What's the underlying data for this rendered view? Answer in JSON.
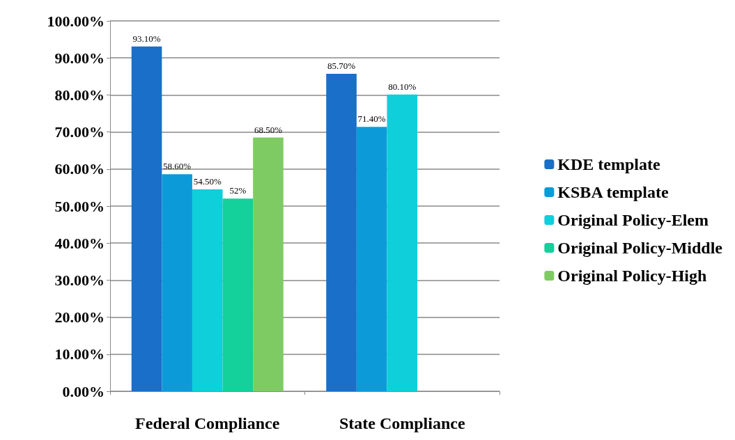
{
  "chart_data": {
    "type": "bar",
    "categories": [
      "Federal Compliance",
      "State Compliance"
    ],
    "series": [
      {
        "name": "KDE template",
        "color": "#1a6fc8",
        "values": [
          93.1,
          85.7
        ],
        "value_labels": [
          "93.10%",
          "85.70%"
        ]
      },
      {
        "name": "KSBA template",
        "color": "#0c9bd8",
        "values": [
          58.6,
          71.4
        ],
        "value_labels": [
          "58.60%",
          "71.40%"
        ]
      },
      {
        "name": "Original Policy-Elem",
        "color": "#0fcfdb",
        "values": [
          54.5,
          80.1
        ],
        "value_labels": [
          "54.50%",
          "80.10%"
        ]
      },
      {
        "name": "Original Policy-Middle",
        "color": "#14d09a",
        "values": [
          52,
          null
        ],
        "value_labels": [
          "52%",
          null
        ]
      },
      {
        "name": "Original Policy-High",
        "color": "#7fcb63",
        "values": [
          68.5,
          null
        ],
        "value_labels": [
          "68.50%",
          null
        ]
      }
    ],
    "ylim": [
      0,
      100
    ],
    "yticks": [
      {
        "value": 0,
        "label": "0.00%"
      },
      {
        "value": 10,
        "label": "10.00%"
      },
      {
        "value": 20,
        "label": "20.00%"
      },
      {
        "value": 30,
        "label": "30.00%"
      },
      {
        "value": 40,
        "label": "40.00%"
      },
      {
        "value": 50,
        "label": "50.00%"
      },
      {
        "value": 60,
        "label": "60.00%"
      },
      {
        "value": 70,
        "label": "70.00%"
      },
      {
        "value": 80,
        "label": "80.00%"
      },
      {
        "value": 90,
        "label": "90.00%"
      },
      {
        "value": 100,
        "label": "100.00%"
      }
    ],
    "grid": "y",
    "legend": "right"
  }
}
